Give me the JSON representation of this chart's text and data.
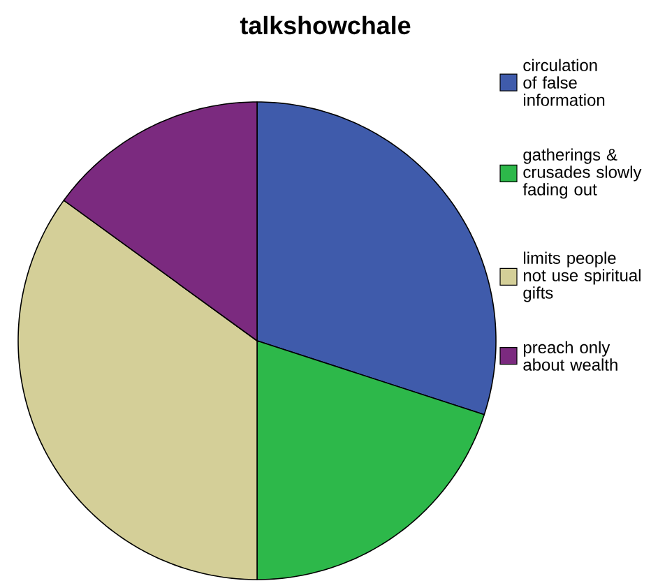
{
  "chart_data": {
    "type": "pie",
    "title": "talkshowchale",
    "categories": [
      "circulation of false information",
      "gatherings & crusades slowly fading out",
      "limits people not use spiritual gifts",
      "preach only about wealth"
    ],
    "values": [
      30,
      20,
      35,
      15
    ],
    "colors": [
      "#3f5bab",
      "#2db84a",
      "#d4cf98",
      "#7b2a7f"
    ],
    "legend": "right"
  }
}
